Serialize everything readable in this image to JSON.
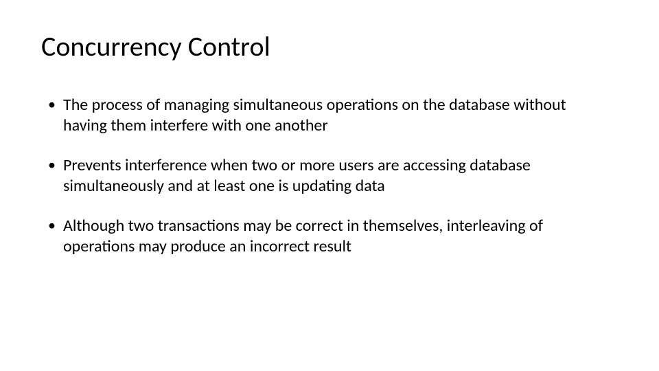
{
  "slide": {
    "title": "Concurrency Control",
    "title_fontsize": 40,
    "title_color": "#000000",
    "background_color": "#ffffff",
    "body_fontsize": 24,
    "body_color": "#000000",
    "bullets": [
      "The process of managing simultaneous operations on the database without having them interfere with one another",
      "Prevents interference when two or more users are accessing database simultaneously and at least one is updating data",
      "Although two transactions may be correct in themselves, interleaving of operations may produce an incorrect result"
    ]
  }
}
